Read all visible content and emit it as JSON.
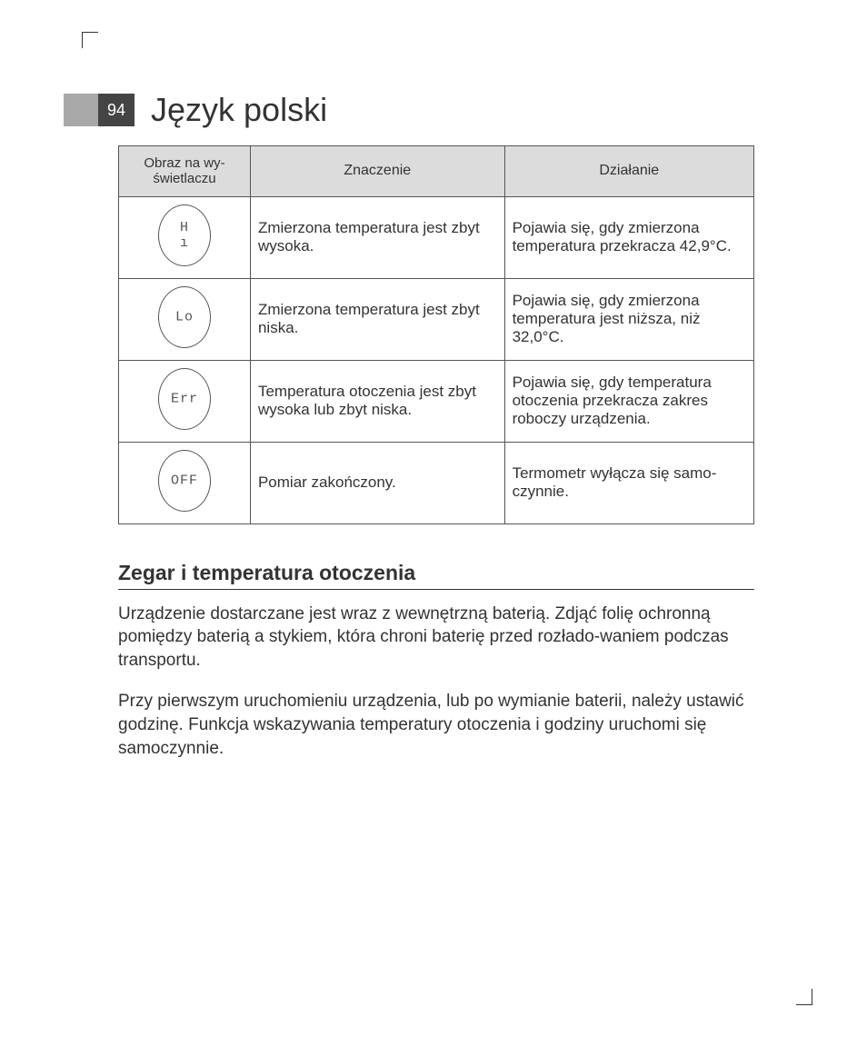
{
  "page_number": "94",
  "title": "Język polski",
  "table": {
    "columns": [
      "Obraz na wy-\nświetlaczu",
      "Znaczenie",
      "Działanie"
    ],
    "rows": [
      {
        "display_text": "H ı",
        "meaning": "Zmierzona temperatura jest zbyt wysoka.",
        "action": "Pojawia się, gdy zmierzona temperatura przekracza 42,9°C."
      },
      {
        "display_text": "Lo",
        "meaning": "Zmierzona temperatura jest zbyt niska.",
        "action": "Pojawia się, gdy zmierzona temperatura jest niższa, niż 32,0°C."
      },
      {
        "display_text": "Err",
        "meaning": "Temperatura otoczenia jest zbyt wysoka lub zbyt niska.",
        "action": "Pojawia się, gdy temperatura otoczenia przekracza zakres roboczy urządzenia."
      },
      {
        "display_text": "OFF",
        "meaning": "Pomiar zakończony.",
        "action": "Termometr wyłącza się samo-czynnie."
      }
    ],
    "header_bg": "#dcdcdc",
    "border_color": "#555555",
    "text_color": "#333333"
  },
  "section": {
    "heading": "Zegar i temperatura otoczenia",
    "paragraphs": [
      "Urządzenie dostarczane jest wraz z wewnętrzną baterią. Zdjąć folię ochronną pomiędzy baterią a stykiem, która chroni baterię przed rozłado-waniem podczas transportu.",
      "Przy pierwszym uruchomieniu urządzenia, lub po wymianie baterii, należy ustawić godzinę. Funkcja wskazywania temperatury otoczenia i godziny uruchomi się samoczynnie."
    ]
  },
  "colors": {
    "gray_bar": "#a8a8a8",
    "dark_box": "#444444",
    "page_bg": "#ffffff",
    "text": "#333333"
  }
}
